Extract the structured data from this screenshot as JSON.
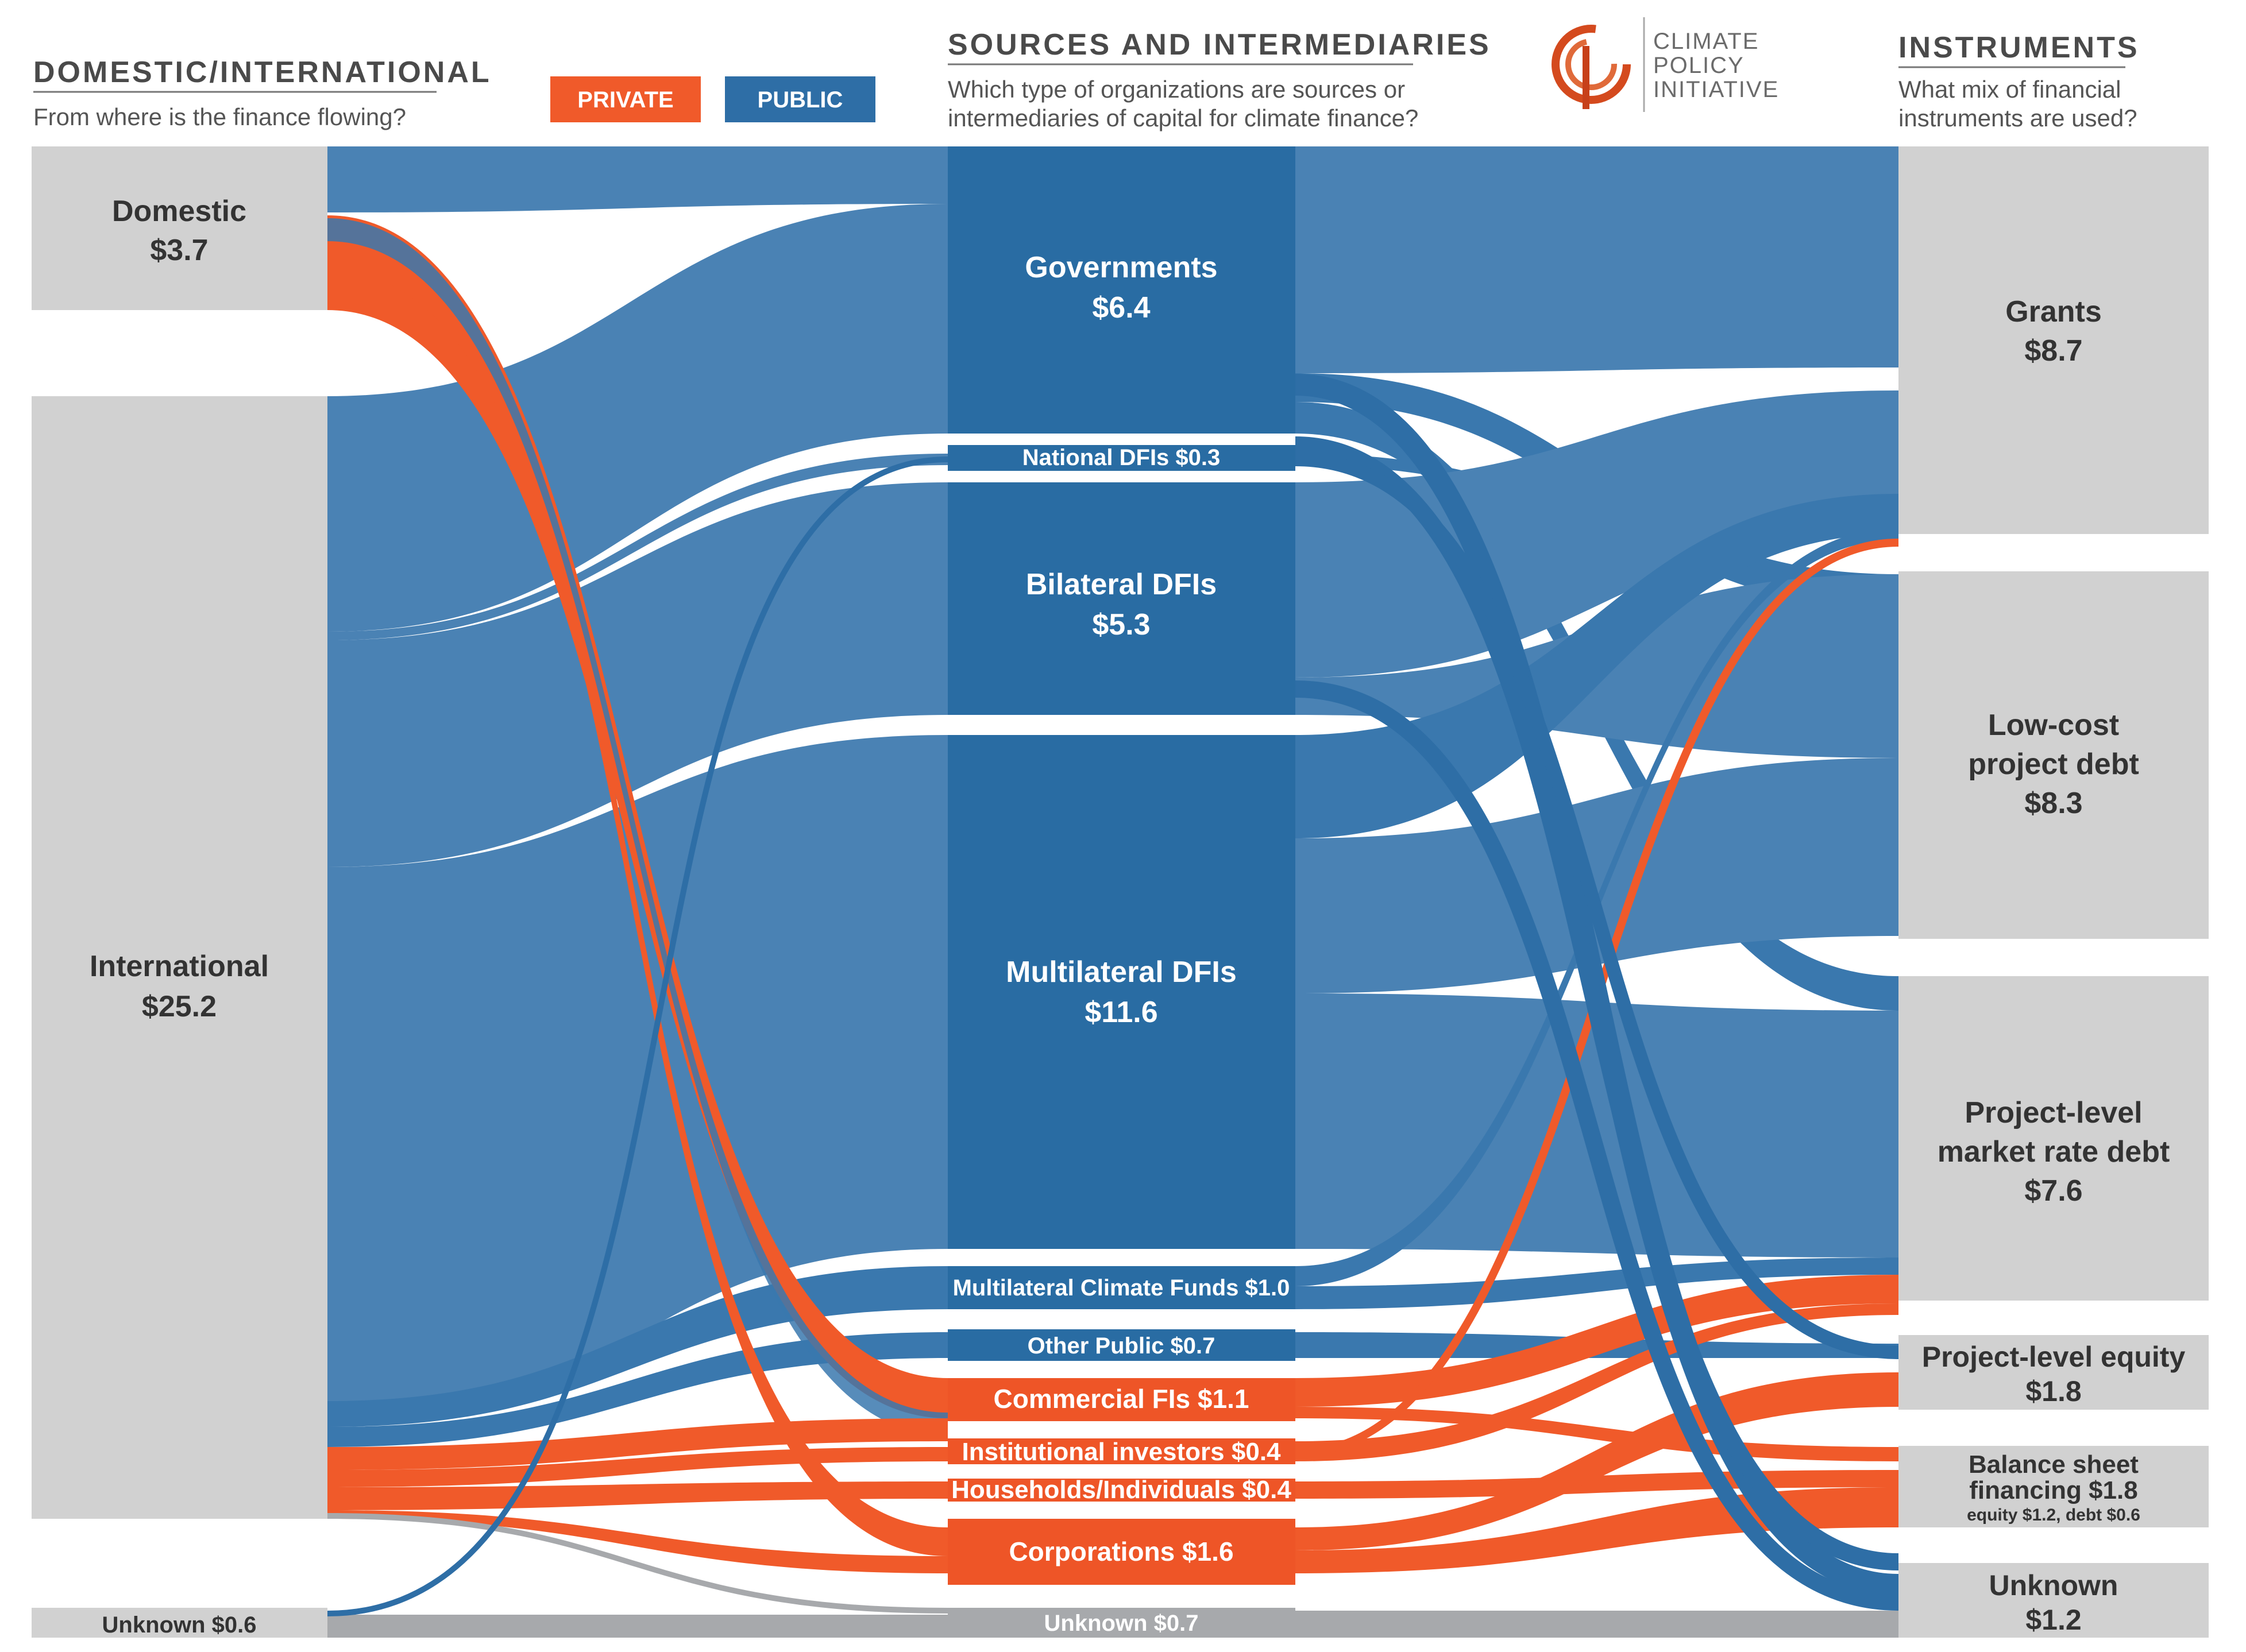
{
  "headers": {
    "col1": {
      "title": "DOMESTIC/INTERNATIONAL",
      "subtitle": "From where is the finance flowing?"
    },
    "col2": {
      "title": "SOURCES AND INTERMEDIARIES",
      "subtitle_line1": "Which type of organizations are sources or",
      "subtitle_line2": "intermediaries of capital for climate finance?"
    },
    "col3": {
      "title": "INSTRUMENTS",
      "subtitle_line1": "What mix of financial",
      "subtitle_line2": "instruments are used?"
    }
  },
  "legend": {
    "private": "PRIVATE",
    "public": "PUBLIC"
  },
  "logo": {
    "line1": "CLIMATE",
    "line2": "POLICY",
    "line3": "INITIATIVE"
  },
  "colors": {
    "public": "#2e6ea6",
    "private": "#f05a2a",
    "unknown": "#a7a9ac",
    "node_gray": "#d1d1d1",
    "text_dark": "#333333"
  },
  "origin": {
    "domestic": {
      "name": "Domestic",
      "value": "$3.7"
    },
    "international": {
      "name": "International",
      "value": "$25.2"
    },
    "unknown": {
      "label": "Unknown $0.6"
    }
  },
  "intermediaries": {
    "governments": {
      "name": "Governments",
      "value": "$6.4"
    },
    "national_dfis": {
      "label": "National DFIs $0.3"
    },
    "bilateral_dfis": {
      "name": "Bilateral DFIs",
      "value": "$5.3"
    },
    "multilateral_dfis": {
      "name": "Multilateral DFIs",
      "value": "$11.6"
    },
    "multilateral_climate_funds": {
      "label": "Multilateral Climate Funds $1.0"
    },
    "other_public": {
      "label": "Other Public $0.7"
    },
    "commercial_fis": {
      "label": "Commercial FIs $1.1"
    },
    "institutional_investors": {
      "label": "Institutional investors $0.4"
    },
    "households": {
      "label": "Households/Individuals $0.4"
    },
    "corporations": {
      "label": "Corporations $1.6"
    },
    "unknown": {
      "label": "Unknown $0.7"
    }
  },
  "instruments": {
    "grants": {
      "name": "Grants",
      "value": "$8.7"
    },
    "low_cost_debt": {
      "line1": "Low-cost",
      "line2": "project debt",
      "value": "$8.3"
    },
    "market_rate_debt": {
      "line1": "Project-level",
      "line2": "market rate debt",
      "value": "$7.6"
    },
    "equity": {
      "name": "Project-level equity",
      "value": "$1.8"
    },
    "balance_sheet": {
      "line1": "Balance sheet",
      "line2": "financing $1.8",
      "line3": "equity $1.2, debt $0.6"
    },
    "unknown": {
      "name": "Unknown",
      "value": "$1.2"
    }
  }
}
